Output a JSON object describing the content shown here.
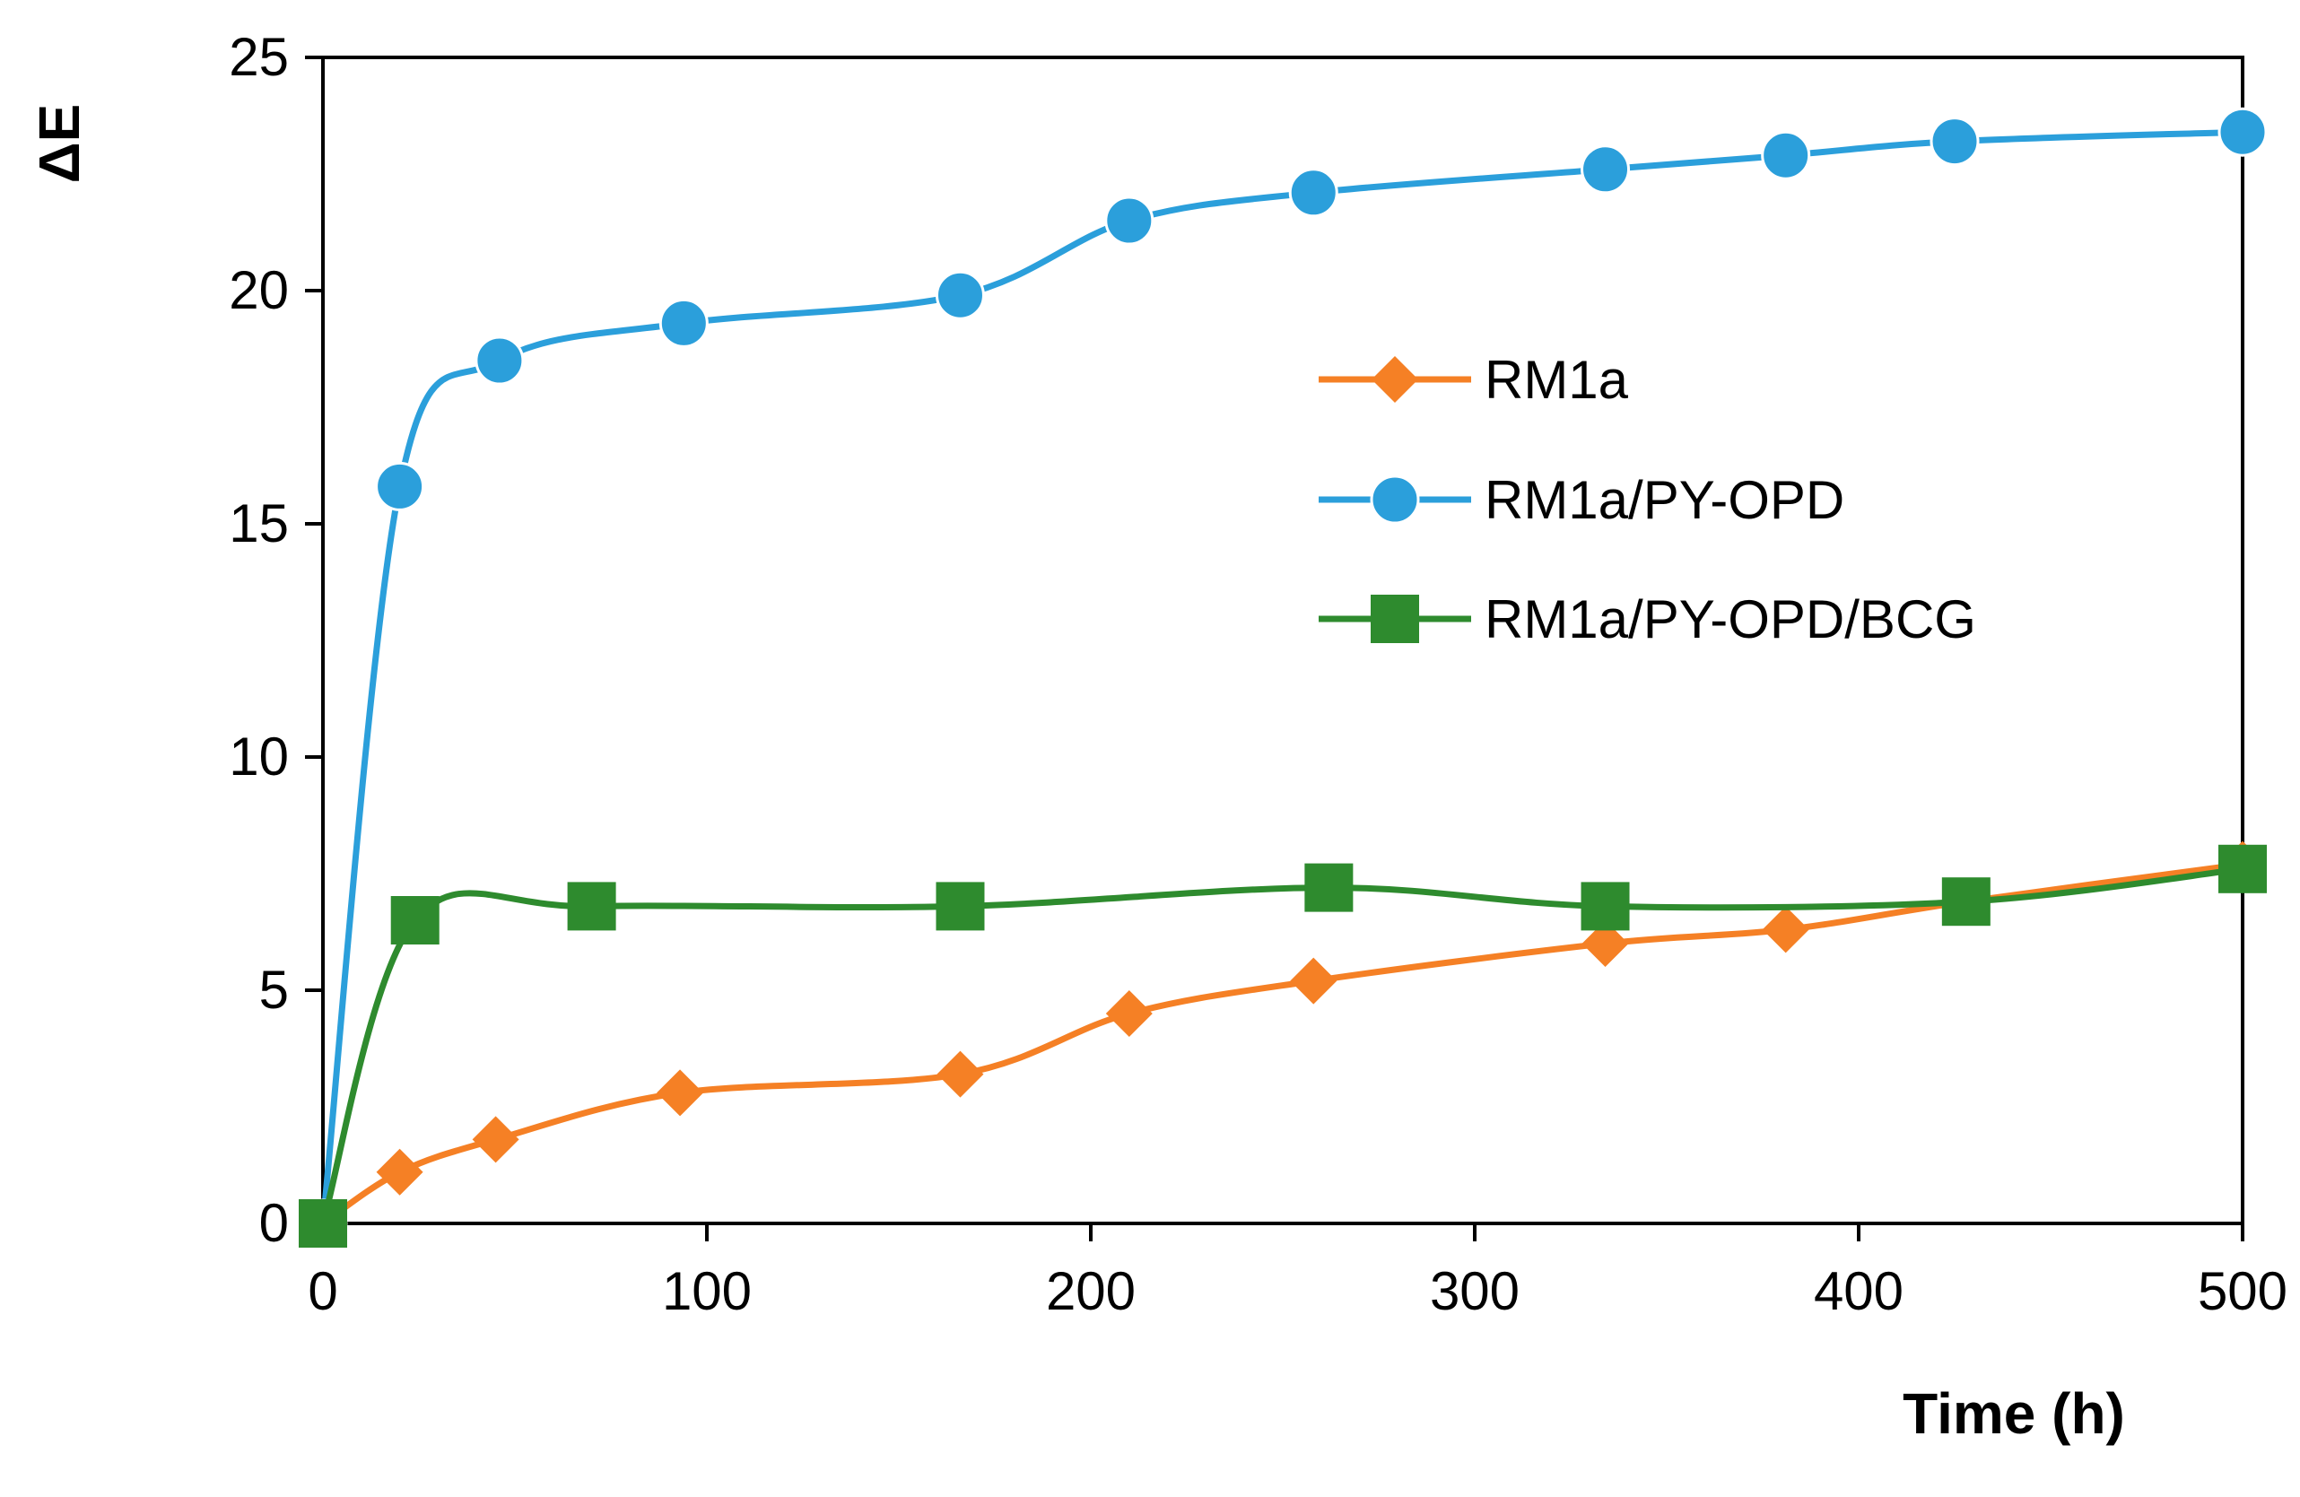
{
  "chart_data": {
    "type": "line",
    "title": "",
    "xlabel": "Time (h)",
    "ylabel": "ΔE",
    "xlim": [
      0,
      500
    ],
    "ylim": [
      0,
      25
    ],
    "xticks": [
      0,
      100,
      200,
      300,
      400,
      500
    ],
    "yticks": [
      0,
      5,
      10,
      15,
      20,
      25
    ],
    "grid": false,
    "smooth": true,
    "legend_position": "center-right",
    "series": [
      {
        "name": "RM1a",
        "color": "#F58025",
        "marker": "diamond",
        "x": [
          0,
          20,
          45,
          93,
          166,
          210,
          258,
          334,
          381,
          428,
          500
        ],
        "y": [
          0,
          1.1,
          1.8,
          2.8,
          3.2,
          4.5,
          5.2,
          6.0,
          6.3,
          6.9,
          7.7
        ]
      },
      {
        "name": "RM1a/PY-OPD",
        "color": "#2B9FDB",
        "marker": "circle",
        "x": [
          0,
          20,
          46,
          94,
          166,
          210,
          258,
          334,
          381,
          425,
          500
        ],
        "y": [
          0,
          15.8,
          18.5,
          19.3,
          19.9,
          21.5,
          22.1,
          22.6,
          22.9,
          23.2,
          23.4
        ]
      },
      {
        "name": "RM1a/PY-OPD/BCG",
        "color": "#2E8B2E",
        "marker": "square",
        "x": [
          0,
          24,
          70,
          166,
          262,
          334,
          428,
          500
        ],
        "y": [
          0,
          6.5,
          6.8,
          6.8,
          7.2,
          6.8,
          6.9,
          7.6
        ]
      }
    ]
  }
}
